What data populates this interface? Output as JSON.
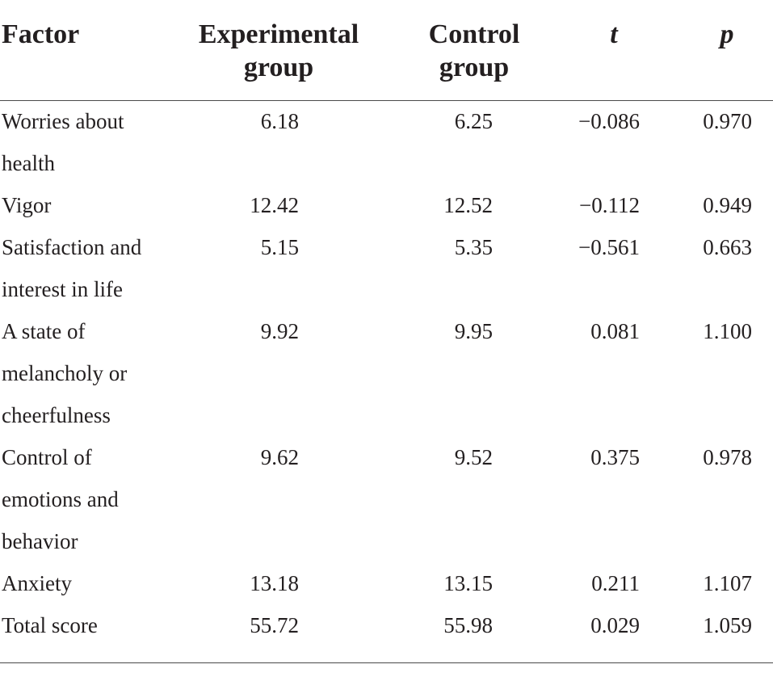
{
  "headers": {
    "factor": "Factor",
    "experimental_line1": "Experimental",
    "experimental_line2": "group",
    "control_line1": "Control",
    "control_line2": "group",
    "t": "t",
    "p": "p"
  },
  "rows": [
    {
      "factor": [
        "Worries about",
        "health"
      ],
      "experimental": "6.18",
      "control": "6.25",
      "t": "−0.086",
      "p": "0.970"
    },
    {
      "factor": [
        "Vigor"
      ],
      "experimental": "12.42",
      "control": "12.52",
      "t": "−0.112",
      "p": "0.949"
    },
    {
      "factor": [
        "Satisfaction and",
        "interest in life"
      ],
      "experimental": "5.15",
      "control": "5.35",
      "t": "−0.561",
      "p": "0.663"
    },
    {
      "factor": [
        "A state of",
        "melancholy or",
        "cheerfulness"
      ],
      "experimental": "9.92",
      "control": "9.95",
      "t": "0.081",
      "p": "1.100"
    },
    {
      "factor": [
        "Control of",
        "emotions and",
        "behavior"
      ],
      "experimental": "9.62",
      "control": "9.52",
      "t": "0.375",
      "p": "0.978"
    },
    {
      "factor": [
        "Anxiety"
      ],
      "experimental": "13.18",
      "control": "13.15",
      "t": "0.211",
      "p": "1.107"
    },
    {
      "factor": [
        "Total score"
      ],
      "experimental": "55.72",
      "control": "55.98",
      "t": "0.029",
      "p": "1.059"
    }
  ]
}
